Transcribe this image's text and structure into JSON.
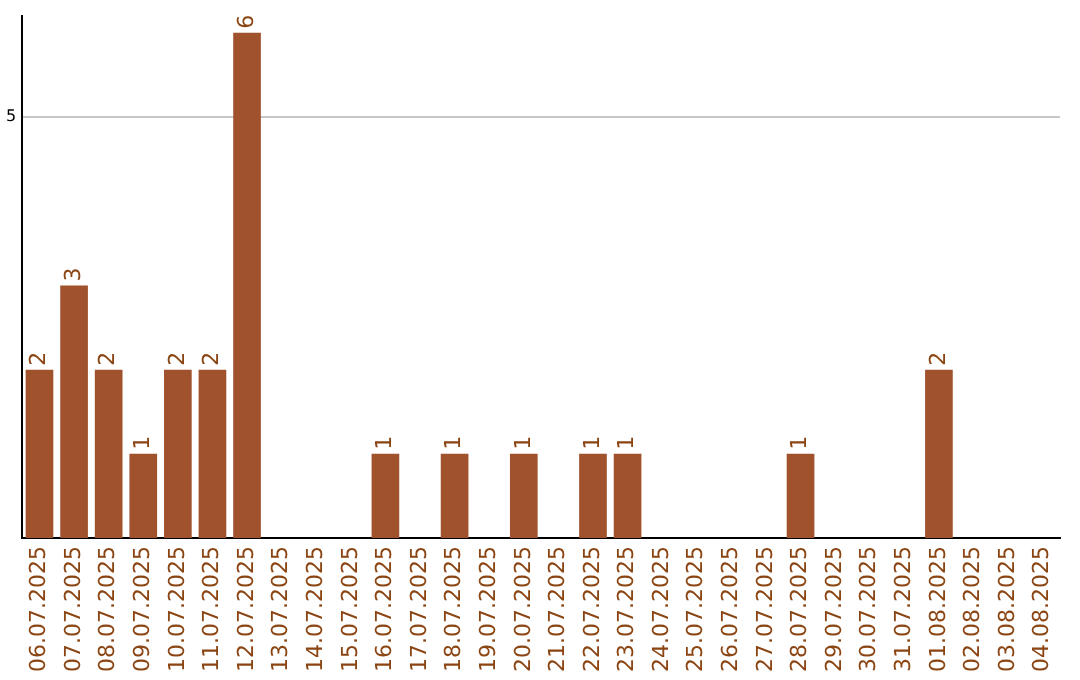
{
  "chart_data": {
    "type": "bar",
    "categories": [
      "06.07.2025",
      "07.07.2025",
      "08.07.2025",
      "09.07.2025",
      "10.07.2025",
      "11.07.2025",
      "12.07.2025",
      "13.07.2025",
      "14.07.2025",
      "15.07.2025",
      "16.07.2025",
      "17.07.2025",
      "18.07.2025",
      "19.07.2025",
      "20.07.2025",
      "21.07.2025",
      "22.07.2025",
      "23.07.2025",
      "24.07.2025",
      "25.07.2025",
      "26.07.2025",
      "27.07.2025",
      "28.07.2025",
      "29.07.2025",
      "30.07.2025",
      "31.07.2025",
      "01.08.2025",
      "02.08.2025",
      "03.08.2025",
      "04.08.2025"
    ],
    "values": [
      2,
      3,
      2,
      1,
      2,
      2,
      6,
      0,
      0,
      0,
      1,
      0,
      1,
      0,
      1,
      0,
      1,
      1,
      0,
      0,
      0,
      0,
      1,
      0,
      0,
      0,
      2,
      0,
      0,
      0
    ],
    "value_labels": [
      "2",
      "3",
      "2",
      "1",
      "2",
      "2",
      "6",
      null,
      null,
      null,
      "1",
      null,
      "1",
      null,
      "1",
      null,
      "1",
      "1",
      null,
      null,
      null,
      null,
      "1",
      null,
      null,
      null,
      "2",
      null,
      null,
      null
    ],
    "color": "#a0522d",
    "ylim": [
      0,
      6.2
    ],
    "yticks": [
      5
    ],
    "grid": "y",
    "legend": false
  }
}
